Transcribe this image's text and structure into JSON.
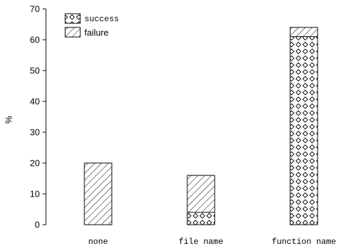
{
  "chart_data": {
    "type": "bar",
    "stacked": true,
    "categories": [
      "none",
      "file name",
      "function name"
    ],
    "series": [
      {
        "name": "success",
        "values": [
          0,
          4,
          61
        ],
        "pattern": "diamond-crosshatch"
      },
      {
        "name": "failure",
        "values": [
          20,
          12,
          3
        ],
        "pattern": "diagonal-hatch"
      }
    ],
    "title": "",
    "xlabel": "",
    "ylabel": "%",
    "ylim": [
      0,
      70
    ],
    "yticks": [
      0,
      10,
      20,
      30,
      40,
      50,
      60,
      70
    ],
    "grid": false,
    "legend_position": "top-left",
    "colors": {
      "stroke": "#000000",
      "fill": "#ffffff"
    }
  }
}
